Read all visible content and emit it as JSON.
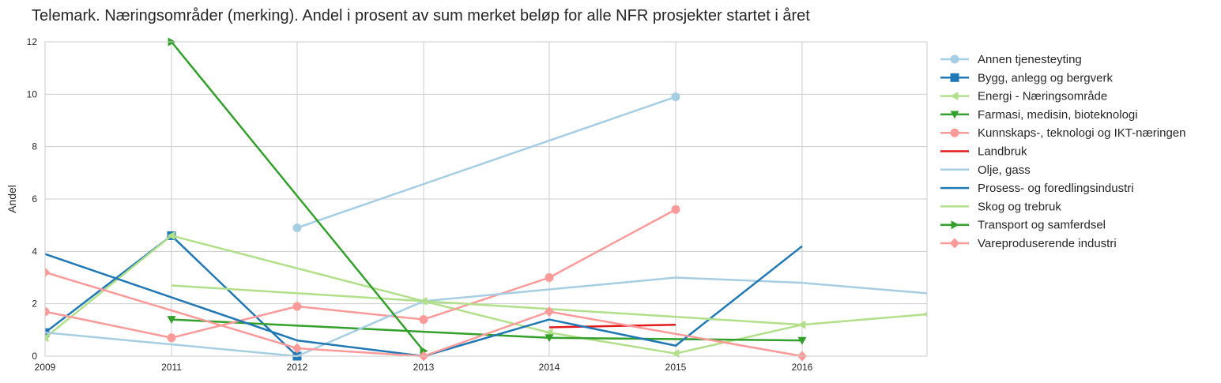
{
  "chart_data": {
    "type": "line",
    "title": "Telemark. Næringsområder (merking). Andel i prosent av sum merket beløp for alle NFR prosjekter startet i året",
    "xlabel": "",
    "ylabel": "Andel",
    "xlim": [
      2009,
      2017
    ],
    "ylim": [
      0,
      12
    ],
    "x_ticks": [
      "2009",
      "2011",
      "2012",
      "2013",
      "2014",
      "2015",
      "2016"
    ],
    "y_ticks": [
      "0",
      "2",
      "4",
      "6",
      "8",
      "10",
      "12"
    ],
    "grid": true,
    "legend": "right-outside",
    "series": [
      {
        "name": "Annen tjenesteyting",
        "color": "#a6cee3",
        "marker": "circle",
        "x": [
          2012,
          2015
        ],
        "y": [
          4.9,
          9.9
        ]
      },
      {
        "name": "Bygg, anlegg og bergverk",
        "color": "#1f78b4",
        "marker": "square",
        "x": [
          2009,
          2011,
          2012
        ],
        "y": [
          0.9,
          4.6,
          0.0
        ]
      },
      {
        "name": "Energi - Næringsområde",
        "color": "#b2df8a",
        "marker": "triangle-left",
        "x": [
          2009,
          2011,
          2013,
          2014,
          2015,
          2016,
          2017
        ],
        "y": [
          0.7,
          4.6,
          2.1,
          0.9,
          0.1,
          1.2,
          1.6
        ]
      },
      {
        "name": "Farmasi, medisin, bioteknologi",
        "color": "#33a02c",
        "marker": "triangle-down",
        "x": [
          2011,
          2014,
          2016
        ],
        "y": [
          1.4,
          0.7,
          0.6
        ]
      },
      {
        "name": "Kunnskaps-, teknologi og IKT-næringen",
        "color": "#fb9a99",
        "marker": "circle",
        "x": [
          2009,
          2011,
          2012,
          2013,
          2014,
          2015
        ],
        "y": [
          1.7,
          0.7,
          1.9,
          1.4,
          3.0,
          5.6
        ]
      },
      {
        "name": "Landbruk",
        "color": "#e31a1c",
        "marker": "none",
        "x": [
          2014,
          2015
        ],
        "y": [
          1.1,
          1.2
        ]
      },
      {
        "name": "Olje, gass",
        "color": "#a6cee3",
        "marker": "none",
        "x": [
          2009,
          2012,
          2013,
          2015,
          2016,
          2017
        ],
        "y": [
          0.9,
          0.0,
          2.1,
          3.0,
          2.8,
          2.4
        ]
      },
      {
        "name": "Prosess- og foredlingsindustri",
        "color": "#1f78b4",
        "marker": "none",
        "x": [
          2009,
          2012,
          2013,
          2014,
          2015,
          2016
        ],
        "y": [
          3.9,
          0.6,
          0.0,
          1.4,
          0.4,
          4.2
        ]
      },
      {
        "name": "Skog og trebruk",
        "color": "#b2df8a",
        "marker": "none",
        "x": [
          2011,
          2016
        ],
        "y": [
          2.7,
          1.2
        ]
      },
      {
        "name": "Transport og samferdsel",
        "color": "#33a02c",
        "marker": "triangle-right",
        "x": [
          2011,
          2013
        ],
        "y": [
          12.0,
          0.2
        ]
      },
      {
        "name": "Vareproduserende industri",
        "color": "#fb9a99",
        "marker": "diamond",
        "x": [
          2009,
          2012,
          2013,
          2014,
          2016
        ],
        "y": [
          3.2,
          0.3,
          0.0,
          1.7,
          0.0
        ]
      }
    ]
  }
}
